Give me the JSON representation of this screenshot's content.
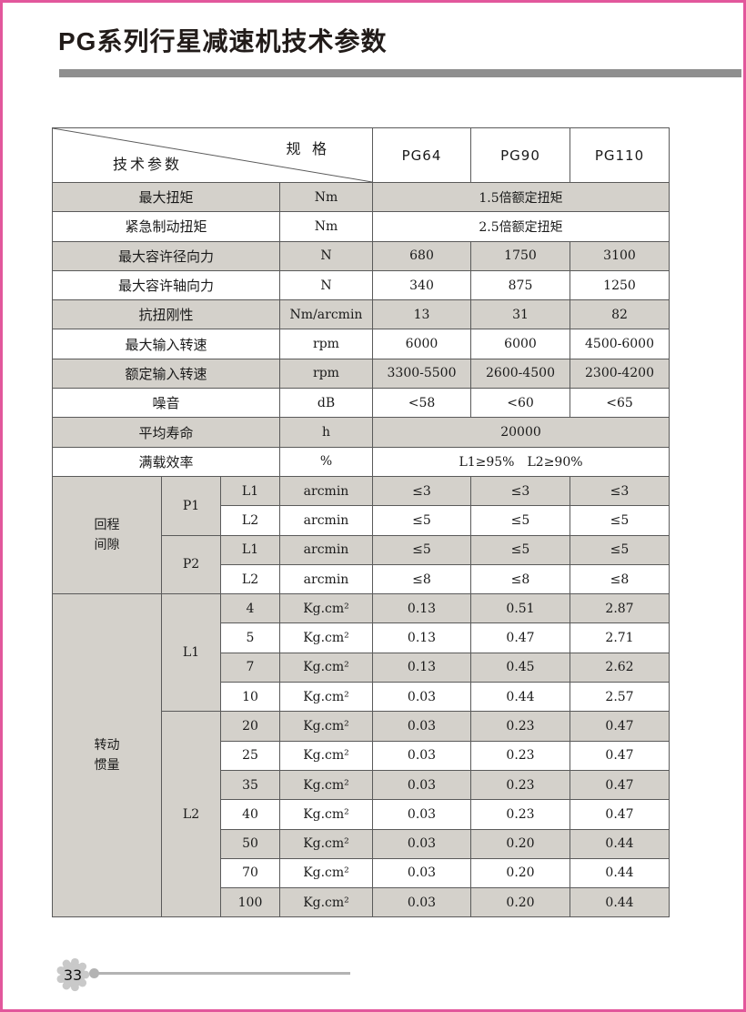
{
  "page": {
    "title": "PG系列行星减速机技术参数",
    "footer_page_number": "33"
  },
  "colors": {
    "accent_pink": "#e2579c",
    "shade_gray": "#d4d1cb",
    "title_bar_gray": "#8f8f8f",
    "table_border_gray": "#5a5a5a",
    "footer_gray": "#c9c9c9"
  },
  "table": {
    "corner_top": "规 格",
    "corner_bottom": "技术参数",
    "columns": [
      "PG64",
      "PG90",
      "PG110"
    ],
    "param_rows": [
      {
        "label": "最大扭矩",
        "unit": "Nm",
        "merged": "1.5倍额定扭矩"
      },
      {
        "label": "紧急制动扭矩",
        "unit": "Nm",
        "merged": "2.5倍额定扭矩"
      },
      {
        "label": "最大容许径向力",
        "unit": "N",
        "values": [
          "680",
          "1750",
          "3100"
        ]
      },
      {
        "label": "最大容许轴向力",
        "unit": "N",
        "values": [
          "340",
          "875",
          "1250"
        ]
      },
      {
        "label": "抗扭刚性",
        "unit": "Nm/arcmin",
        "values": [
          "13",
          "31",
          "82"
        ]
      },
      {
        "label": "最大输入转速",
        "unit": "rpm",
        "values": [
          "6000",
          "6000",
          "4500-6000"
        ]
      },
      {
        "label": "额定输入转速",
        "unit": "rpm",
        "values": [
          "3300-5500",
          "2600-4500",
          "2300-4200"
        ]
      },
      {
        "label": "噪音",
        "unit": "dB",
        "values": [
          "<58",
          "<60",
          "<65"
        ]
      },
      {
        "label": "平均寿命",
        "unit": "h",
        "merged": "20000"
      },
      {
        "label": "满载效率",
        "unit": "%",
        "merged": "L1≥95%　L2≥90%"
      }
    ],
    "backlash": {
      "group_label_lines": [
        "回程",
        "间隙"
      ],
      "classes": [
        {
          "name": "P1",
          "rows": [
            {
              "stage": "L1",
              "unit": "arcmin",
              "values": [
                "≤3",
                "≤3",
                "≤3"
              ]
            },
            {
              "stage": "L2",
              "unit": "arcmin",
              "values": [
                "≤5",
                "≤5",
                "≤5"
              ]
            }
          ]
        },
        {
          "name": "P2",
          "rows": [
            {
              "stage": "L1",
              "unit": "arcmin",
              "values": [
                "≤5",
                "≤5",
                "≤5"
              ]
            },
            {
              "stage": "L2",
              "unit": "arcmin",
              "values": [
                "≤8",
                "≤8",
                "≤8"
              ]
            }
          ]
        }
      ]
    },
    "inertia": {
      "group_label_lines": [
        "转动",
        "惯量"
      ],
      "stages": [
        {
          "name": "L1",
          "rows": [
            {
              "ratio": "4",
              "unit": "Kg.cm²",
              "values": [
                "0.13",
                "0.51",
                "2.87"
              ]
            },
            {
              "ratio": "5",
              "unit": "Kg.cm²",
              "values": [
                "0.13",
                "0.47",
                "2.71"
              ]
            },
            {
              "ratio": "7",
              "unit": "Kg.cm²",
              "values": [
                "0.13",
                "0.45",
                "2.62"
              ]
            },
            {
              "ratio": "10",
              "unit": "Kg.cm²",
              "values": [
                "0.03",
                "0.44",
                "2.57"
              ]
            }
          ]
        },
        {
          "name": "L2",
          "rows": [
            {
              "ratio": "20",
              "unit": "Kg.cm²",
              "values": [
                "0.03",
                "0.23",
                "0.47"
              ]
            },
            {
              "ratio": "25",
              "unit": "Kg.cm²",
              "values": [
                "0.03",
                "0.23",
                "0.47"
              ]
            },
            {
              "ratio": "35",
              "unit": "Kg.cm²",
              "values": [
                "0.03",
                "0.23",
                "0.47"
              ]
            },
            {
              "ratio": "40",
              "unit": "Kg.cm²",
              "values": [
                "0.03",
                "0.23",
                "0.47"
              ]
            },
            {
              "ratio": "50",
              "unit": "Kg.cm²",
              "values": [
                "0.03",
                "0.20",
                "0.44"
              ]
            },
            {
              "ratio": "70",
              "unit": "Kg.cm²",
              "values": [
                "0.03",
                "0.20",
                "0.44"
              ]
            },
            {
              "ratio": "100",
              "unit": "Kg.cm²",
              "values": [
                "0.03",
                "0.20",
                "0.44"
              ]
            }
          ]
        }
      ]
    }
  }
}
